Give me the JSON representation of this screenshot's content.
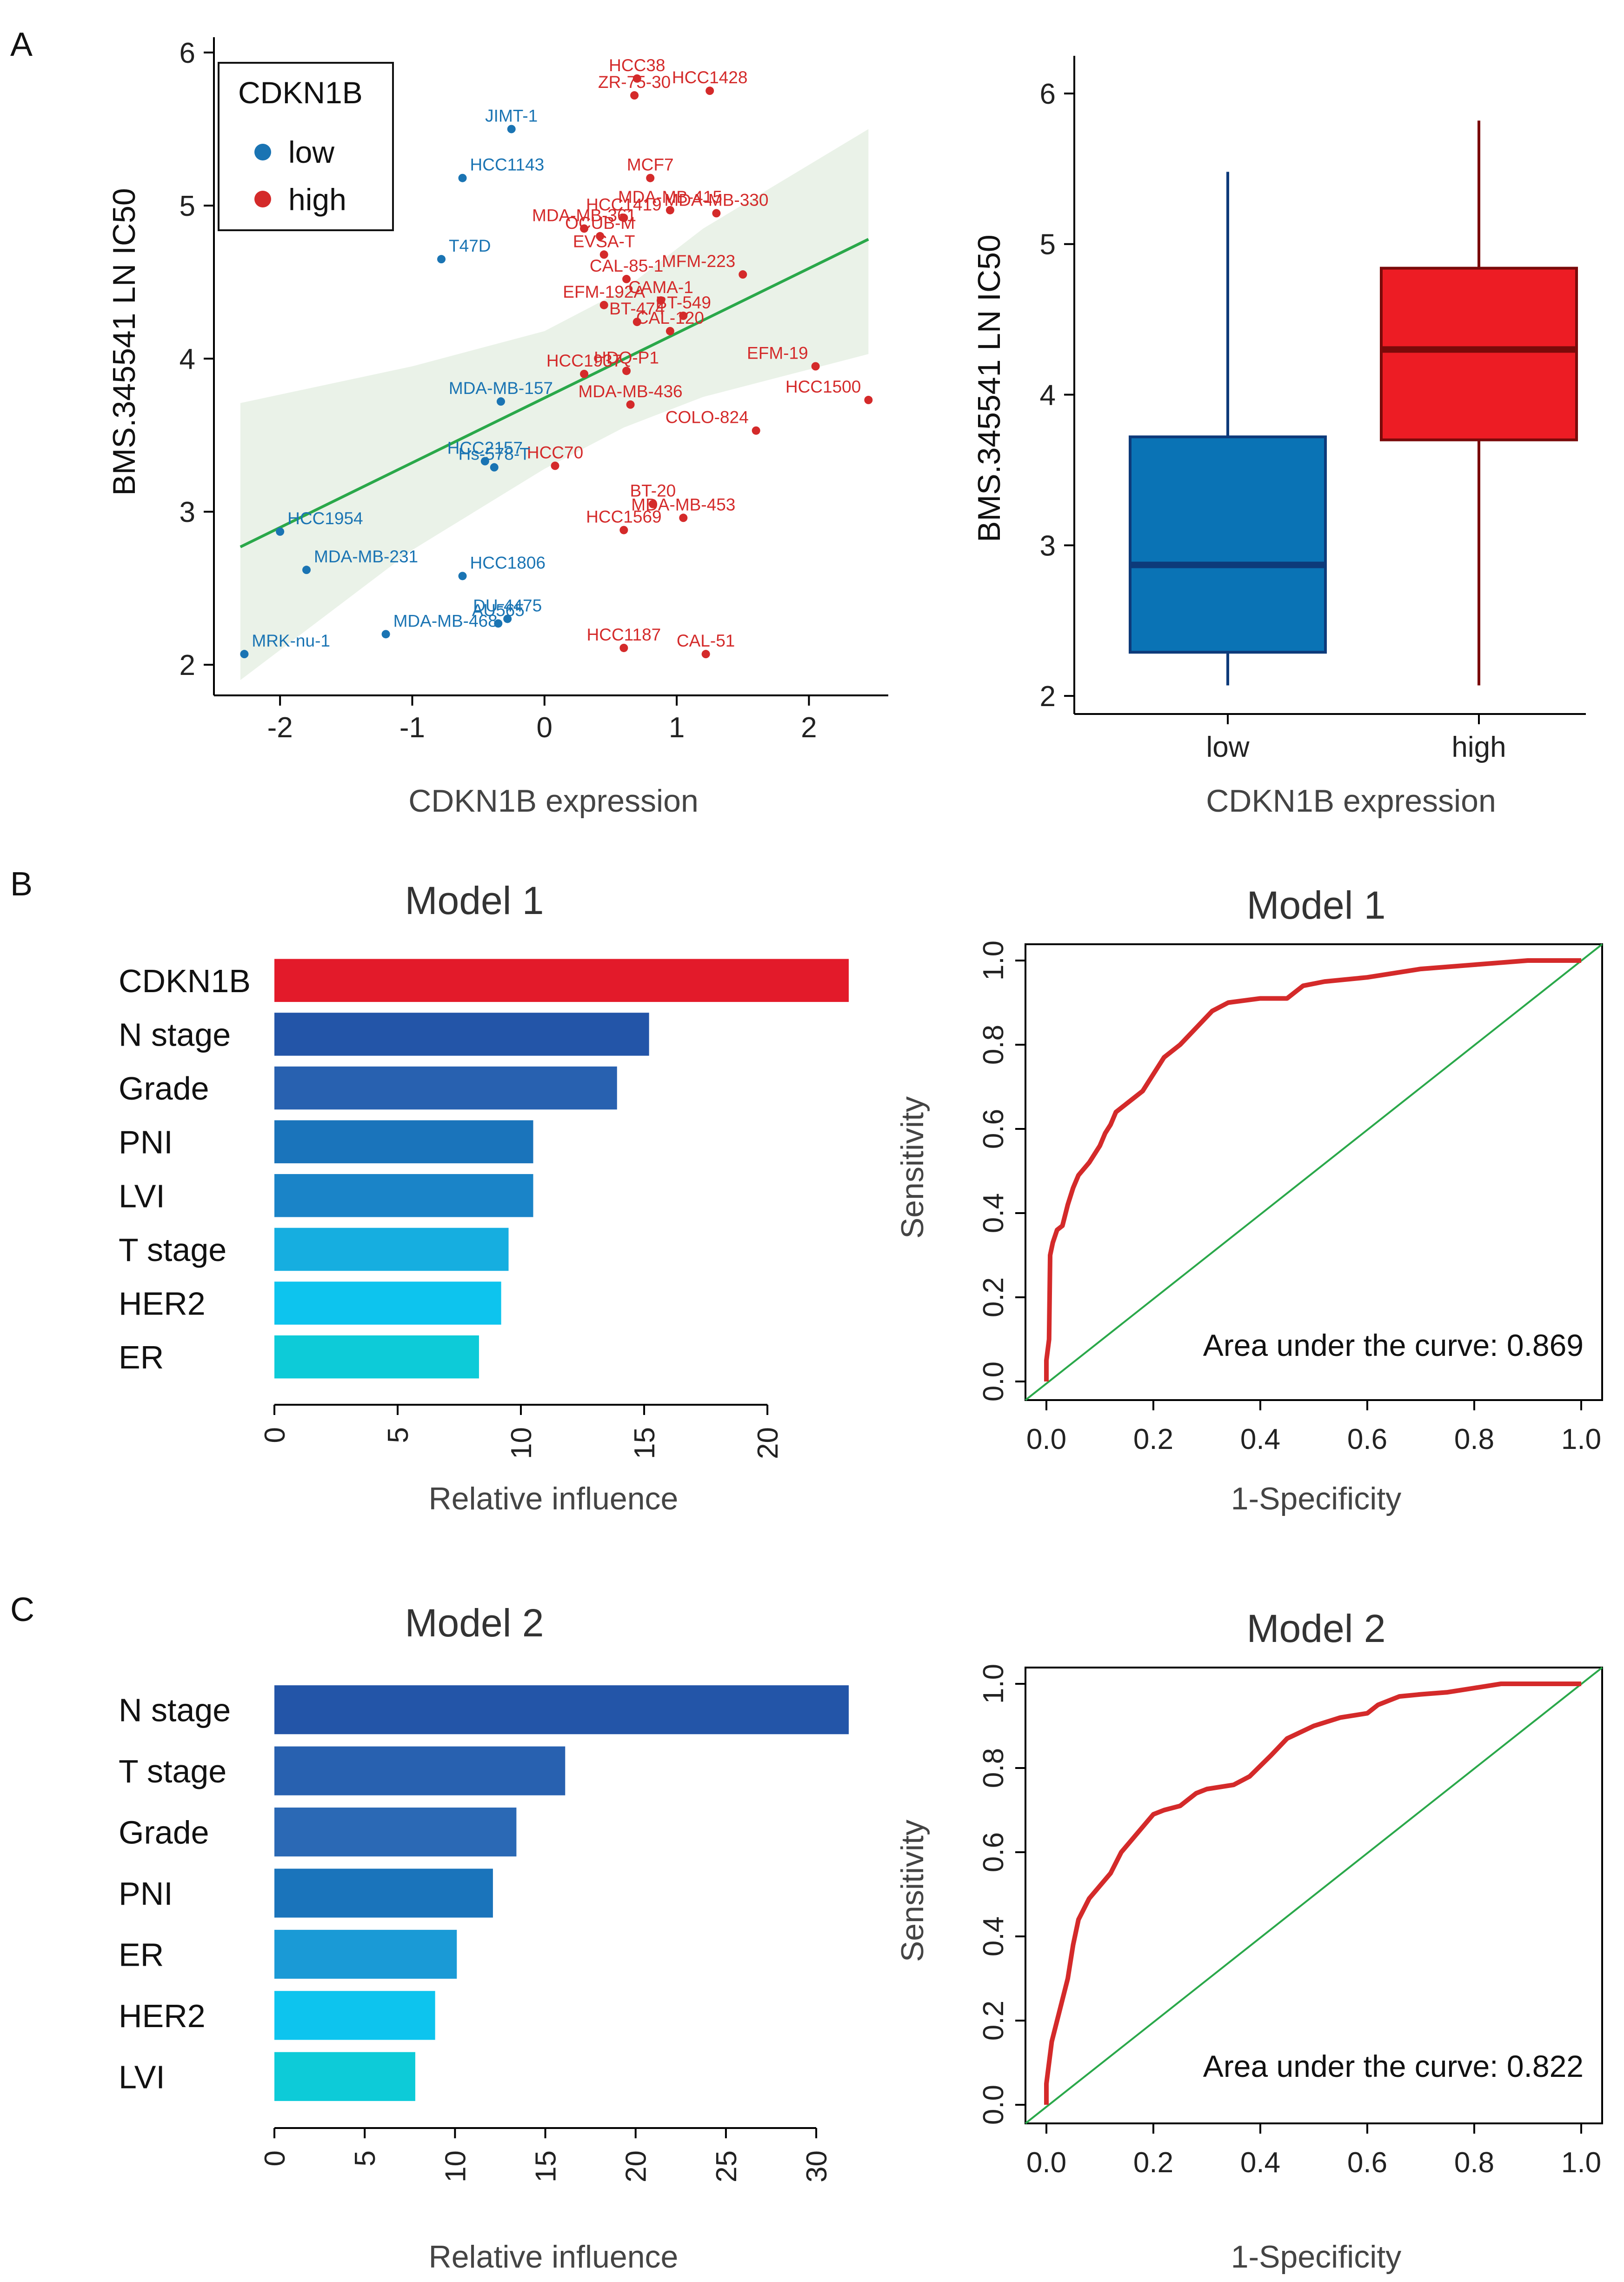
{
  "panels": {
    "a": "A",
    "b": "B",
    "c": "C"
  },
  "colors": {
    "low": "#1a74b3",
    "high": "#d42a2a",
    "fit": "#2aa84a",
    "band": "#eaf2e8",
    "roc": "#d42a2a",
    "diag": "#2aa84a"
  },
  "scatter": {
    "xlabel": "CDKN1B expression",
    "ylabel": "BMS.345541 LN IC50",
    "xlim": [
      -2.5,
      2.6
    ],
    "ylim": [
      1.8,
      6.1
    ],
    "xticks": [
      "-2",
      "-1",
      "0",
      "1",
      "2"
    ],
    "yticks": [
      "2",
      "3",
      "4",
      "5",
      "6"
    ],
    "legend": {
      "title": "CDKN1B",
      "low": "low",
      "high": "high"
    },
    "fit": {
      "x0": -2.3,
      "y0": 2.77,
      "x1": 2.45,
      "y1": 4.78
    },
    "band_upper": [
      [
        -2.3,
        3.71
      ],
      [
        -1.0,
        3.95
      ],
      [
        0.0,
        4.18
      ],
      [
        0.6,
        4.45
      ],
      [
        1.2,
        4.85
      ],
      [
        2.45,
        5.5
      ]
    ],
    "band_lower": [
      [
        2.45,
        4.03
      ],
      [
        1.2,
        3.75
      ],
      [
        0.6,
        3.55
      ],
      [
        0.0,
        3.28
      ],
      [
        -1.0,
        2.75
      ],
      [
        -2.3,
        1.9
      ]
    ],
    "points": [
      {
        "label": "HCC38",
        "x": 0.7,
        "y": 5.83,
        "group": "high"
      },
      {
        "label": "HCC1428",
        "x": 1.25,
        "y": 5.75,
        "group": "high"
      },
      {
        "label": "ZR-75-30",
        "x": 0.68,
        "y": 5.72,
        "group": "high"
      },
      {
        "label": "JIMT-1",
        "x": -0.25,
        "y": 5.5,
        "group": "low"
      },
      {
        "label": "MCF7",
        "x": 0.8,
        "y": 5.18,
        "group": "high"
      },
      {
        "label": "HCC1143",
        "x": -0.62,
        "y": 5.18,
        "group": "low"
      },
      {
        "label": "MDA-MB-415",
        "x": 0.95,
        "y": 4.97,
        "group": "high"
      },
      {
        "label": "HCC1419",
        "x": 0.6,
        "y": 4.92,
        "group": "high"
      },
      {
        "label": "MDA-MB-330",
        "x": 1.3,
        "y": 4.95,
        "group": "high"
      },
      {
        "label": "MDA-MB-361",
        "x": 0.3,
        "y": 4.85,
        "group": "high"
      },
      {
        "label": "OCUB-M",
        "x": 0.42,
        "y": 4.8,
        "group": "high"
      },
      {
        "label": "EVSA-T",
        "x": 0.45,
        "y": 4.68,
        "group": "high"
      },
      {
        "label": "T47D",
        "x": -0.78,
        "y": 4.65,
        "group": "low"
      },
      {
        "label": "MFM-223",
        "x": 1.5,
        "y": 4.55,
        "group": "high"
      },
      {
        "label": "CAL-85-1",
        "x": 0.62,
        "y": 4.52,
        "group": "high"
      },
      {
        "label": "CAMA-1",
        "x": 0.88,
        "y": 4.38,
        "group": "high"
      },
      {
        "label": "EFM-192A",
        "x": 0.45,
        "y": 4.35,
        "group": "high"
      },
      {
        "label": "BT-549",
        "x": 1.05,
        "y": 4.28,
        "group": "high"
      },
      {
        "label": "BT-474",
        "x": 0.7,
        "y": 4.24,
        "group": "high"
      },
      {
        "label": "CAL-120",
        "x": 0.95,
        "y": 4.18,
        "group": "high"
      },
      {
        "label": "EFM-19",
        "x": 2.05,
        "y": 3.95,
        "group": "high"
      },
      {
        "label": "HCC1937",
        "x": 0.3,
        "y": 3.9,
        "group": "high"
      },
      {
        "label": "HDQ-P1",
        "x": 0.62,
        "y": 3.92,
        "group": "high"
      },
      {
        "label": "HCC1500",
        "x": 2.45,
        "y": 3.73,
        "group": "high"
      },
      {
        "label": "MDA-MB-157",
        "x": -0.33,
        "y": 3.72,
        "group": "low"
      },
      {
        "label": "MDA-MB-436",
        "x": 0.65,
        "y": 3.7,
        "group": "high"
      },
      {
        "label": "COLO-824",
        "x": 1.6,
        "y": 3.53,
        "group": "high"
      },
      {
        "label": "HCC2157",
        "x": -0.45,
        "y": 3.33,
        "group": "low"
      },
      {
        "label": "HCC70",
        "x": 0.08,
        "y": 3.3,
        "group": "high"
      },
      {
        "label": "Hs-578-T",
        "x": -0.38,
        "y": 3.29,
        "group": "low"
      },
      {
        "label": "BT-20",
        "x": 0.82,
        "y": 3.05,
        "group": "high"
      },
      {
        "label": "MDA-MB-453",
        "x": 1.05,
        "y": 2.96,
        "group": "high"
      },
      {
        "label": "HCC1954",
        "x": -2.0,
        "y": 2.87,
        "group": "low"
      },
      {
        "label": "HCC1569",
        "x": 0.6,
        "y": 2.88,
        "group": "high"
      },
      {
        "label": "MDA-MB-231",
        "x": -1.8,
        "y": 2.62,
        "group": "low"
      },
      {
        "label": "HCC1806",
        "x": -0.62,
        "y": 2.58,
        "group": "low"
      },
      {
        "label": "DU-4475",
        "x": -0.28,
        "y": 2.3,
        "group": "low"
      },
      {
        "label": "MDA-MB-468",
        "x": -1.2,
        "y": 2.2,
        "group": "low"
      },
      {
        "label": "AU565",
        "x": -0.35,
        "y": 2.27,
        "group": "low"
      },
      {
        "label": "HCC1187",
        "x": 0.6,
        "y": 2.11,
        "group": "high"
      },
      {
        "label": "MRK-nu-1",
        "x": -2.27,
        "y": 2.07,
        "group": "low"
      },
      {
        "label": "CAL-51",
        "x": 1.22,
        "y": 2.07,
        "group": "high"
      }
    ]
  },
  "boxplot": {
    "xlabel": "CDKN1B expression",
    "ylabel": "BMS.345541 LN IC50",
    "ylim": [
      1.88,
      6.25
    ],
    "yticks": [
      "2",
      "3",
      "4",
      "5",
      "6"
    ],
    "groups": [
      {
        "name": "low",
        "min": 2.07,
        "q1": 2.29,
        "median": 2.87,
        "q3": 3.72,
        "max": 5.48,
        "fill": "#0a73b5",
        "edge": "#0d3a7a"
      },
      {
        "name": "high",
        "min": 2.07,
        "q1": 3.7,
        "median": 4.3,
        "q3": 4.84,
        "max": 5.82,
        "fill": "#ed1c24",
        "edge": "#7a0a0a"
      }
    ]
  },
  "model1": {
    "title": "Model 1",
    "importance": {
      "xlabel": "Relative influence",
      "xmax": 23.3,
      "xticks": [
        "0",
        "5",
        "10",
        "15",
        "20"
      ],
      "bars": [
        {
          "label": "CDKN1B",
          "value": 23.3,
          "color": "#e31a2a"
        },
        {
          "label": "N stage",
          "value": 15.2,
          "color": "#2355a8"
        },
        {
          "label": "Grade",
          "value": 13.9,
          "color": "#2861b0"
        },
        {
          "label": "PNI",
          "value": 10.5,
          "color": "#1a74bb"
        },
        {
          "label": "LVI",
          "value": 10.5,
          "color": "#1a84c8"
        },
        {
          "label": "T stage",
          "value": 9.5,
          "color": "#16aee0"
        },
        {
          "label": "HER2",
          "value": 9.2,
          "color": "#0dc4ee"
        },
        {
          "label": "ER",
          "value": 8.3,
          "color": "#0dcbd8"
        }
      ]
    },
    "roc": {
      "xlabel": "1-Specificity",
      "ylabel": "Sensitivity",
      "xticks": [
        "0.0",
        "0.2",
        "0.4",
        "0.6",
        "0.8",
        "1.0"
      ],
      "yticks": [
        "0.0",
        "0.2",
        "0.4",
        "0.6",
        "0.8",
        "1.0"
      ],
      "auc_text": "Area under the curve: 0.869",
      "curve": [
        [
          0,
          0
        ],
        [
          0,
          0.05
        ],
        [
          0.005,
          0.1
        ],
        [
          0.006,
          0.2
        ],
        [
          0.007,
          0.3
        ],
        [
          0.012,
          0.33
        ],
        [
          0.02,
          0.36
        ],
        [
          0.03,
          0.37
        ],
        [
          0.04,
          0.42
        ],
        [
          0.05,
          0.46
        ],
        [
          0.06,
          0.49
        ],
        [
          0.08,
          0.52
        ],
        [
          0.1,
          0.56
        ],
        [
          0.11,
          0.59
        ],
        [
          0.12,
          0.61
        ],
        [
          0.13,
          0.64
        ],
        [
          0.15,
          0.66
        ],
        [
          0.18,
          0.69
        ],
        [
          0.2,
          0.73
        ],
        [
          0.22,
          0.77
        ],
        [
          0.25,
          0.8
        ],
        [
          0.28,
          0.84
        ],
        [
          0.31,
          0.88
        ],
        [
          0.34,
          0.9
        ],
        [
          0.4,
          0.91
        ],
        [
          0.45,
          0.91
        ],
        [
          0.48,
          0.94
        ],
        [
          0.52,
          0.95
        ],
        [
          0.6,
          0.96
        ],
        [
          0.7,
          0.98
        ],
        [
          0.8,
          0.99
        ],
        [
          0.9,
          1.0
        ],
        [
          1.0,
          1.0
        ]
      ]
    }
  },
  "model2": {
    "title": "Model 2",
    "importance": {
      "xlabel": "Relative influence",
      "xmax": 31.8,
      "xticks": [
        "0",
        "5",
        "10",
        "15",
        "20",
        "25",
        "30"
      ],
      "bars": [
        {
          "label": "N stage",
          "value": 31.8,
          "color": "#2355a8"
        },
        {
          "label": "T stage",
          "value": 16.1,
          "color": "#2861b0"
        },
        {
          "label": "Grade",
          "value": 13.4,
          "color": "#2b69b5"
        },
        {
          "label": "PNI",
          "value": 12.1,
          "color": "#1a74bb"
        },
        {
          "label": "ER",
          "value": 10.1,
          "color": "#1a9ad6"
        },
        {
          "label": "HER2",
          "value": 8.9,
          "color": "#0dc4ee"
        },
        {
          "label": "LVI",
          "value": 7.8,
          "color": "#0dcbd8"
        }
      ]
    },
    "roc": {
      "xlabel": "1-Specificity",
      "ylabel": "Sensitivity",
      "xticks": [
        "0.0",
        "0.2",
        "0.4",
        "0.6",
        "0.8",
        "1.0"
      ],
      "yticks": [
        "0.0",
        "0.2",
        "0.4",
        "0.6",
        "0.8",
        "1.0"
      ],
      "auc_text": "Area under the curve: 0.822",
      "curve": [
        [
          0,
          0
        ],
        [
          0,
          0.05
        ],
        [
          0.005,
          0.1
        ],
        [
          0.01,
          0.15
        ],
        [
          0.02,
          0.2
        ],
        [
          0.03,
          0.25
        ],
        [
          0.04,
          0.3
        ],
        [
          0.05,
          0.38
        ],
        [
          0.06,
          0.44
        ],
        [
          0.08,
          0.49
        ],
        [
          0.1,
          0.52
        ],
        [
          0.12,
          0.55
        ],
        [
          0.14,
          0.6
        ],
        [
          0.16,
          0.63
        ],
        [
          0.18,
          0.66
        ],
        [
          0.2,
          0.69
        ],
        [
          0.22,
          0.7
        ],
        [
          0.25,
          0.71
        ],
        [
          0.28,
          0.74
        ],
        [
          0.3,
          0.75
        ],
        [
          0.35,
          0.76
        ],
        [
          0.38,
          0.78
        ],
        [
          0.42,
          0.83
        ],
        [
          0.45,
          0.87
        ],
        [
          0.5,
          0.9
        ],
        [
          0.55,
          0.92
        ],
        [
          0.6,
          0.93
        ],
        [
          0.62,
          0.95
        ],
        [
          0.66,
          0.97
        ],
        [
          0.7,
          0.975
        ],
        [
          0.75,
          0.98
        ],
        [
          0.8,
          0.99
        ],
        [
          0.85,
          1.0
        ],
        [
          1.0,
          1.0
        ]
      ]
    }
  }
}
